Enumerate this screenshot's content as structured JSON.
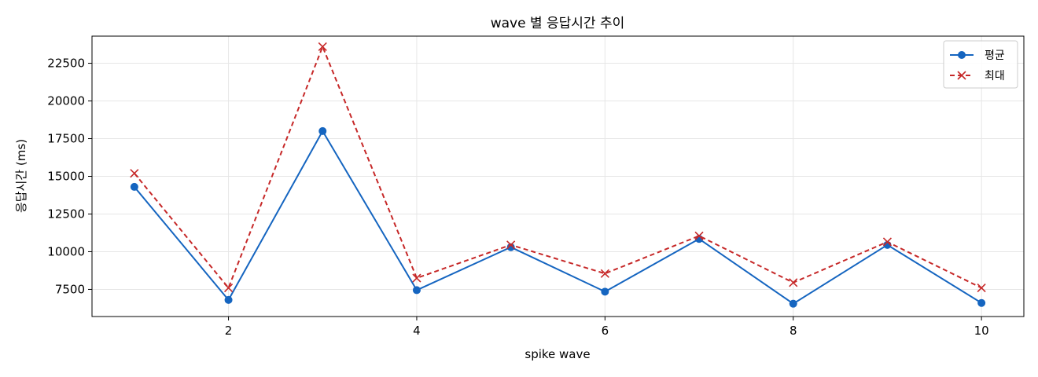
{
  "chart_data": {
    "type": "line",
    "title": "wave 별 응답시간 추이",
    "xlabel": "spike wave",
    "ylabel": "응답시간 (ms)",
    "x": [
      1,
      2,
      3,
      4,
      5,
      6,
      7,
      8,
      9,
      10
    ],
    "xlim": [
      0.55,
      10.45
    ],
    "ylim": [
      5700,
      24300
    ],
    "x_ticks": [
      2,
      4,
      6,
      8,
      10
    ],
    "y_ticks": [
      7500,
      10000,
      12500,
      15000,
      17500,
      20000,
      22500
    ],
    "grid": true,
    "legend_position": "top-right",
    "series": [
      {
        "name": "평균",
        "values": [
          14300,
          6800,
          18000,
          7450,
          10300,
          7350,
          10850,
          6550,
          10450,
          6600
        ],
        "color": "#1565c0",
        "marker": "circle",
        "linestyle": "solid"
      },
      {
        "name": "최대",
        "values": [
          15200,
          7600,
          23600,
          8250,
          10450,
          8550,
          11050,
          7950,
          10650,
          7600
        ],
        "color": "#c62828",
        "marker": "x",
        "linestyle": "dashed"
      }
    ]
  }
}
